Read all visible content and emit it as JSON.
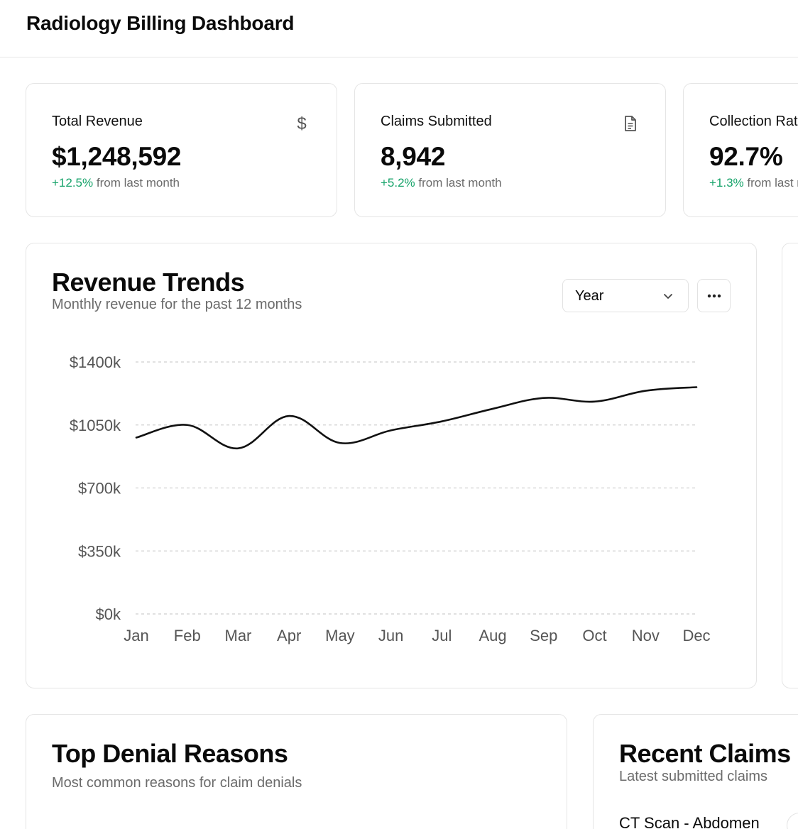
{
  "header": {
    "title": "Radiology Billing Dashboard"
  },
  "stats": [
    {
      "label": "Total Revenue",
      "icon": "dollar-icon",
      "value": "$1,248,592",
      "change": "+12.5%",
      "change_suffix": " from last month"
    },
    {
      "label": "Claims Submitted",
      "icon": "document-icon",
      "value": "8,942",
      "change": "+5.2%",
      "change_suffix": " from last month"
    },
    {
      "label": "Collection Rate",
      "value": "92.7%",
      "change": "+1.3%",
      "change_suffix": " from last month"
    }
  ],
  "revenue_trends": {
    "title": "Revenue Trends",
    "subtitle": "Monthly revenue for the past 12 months",
    "period_select": {
      "value": "Year"
    },
    "more_icon": "more-horizontal-icon"
  },
  "chart_data": {
    "type": "line",
    "categories": [
      "Jan",
      "Feb",
      "Mar",
      "Apr",
      "May",
      "Jun",
      "Jul",
      "Aug",
      "Sep",
      "Oct",
      "Nov",
      "Dec"
    ],
    "values": [
      980,
      1050,
      920,
      1100,
      950,
      1020,
      1070,
      1140,
      1200,
      1180,
      1240,
      1260
    ],
    "yticks": [
      "$0k",
      "$350k",
      "$700k",
      "$1050k",
      "$1400k"
    ],
    "ylim": [
      0,
      1400
    ],
    "grid": true,
    "line_color": "#111111"
  },
  "denials": {
    "title": "Top Denial Reasons",
    "subtitle": "Most common reasons for claim denials"
  },
  "recent_claims": {
    "title": "Recent Claims",
    "subtitle": "Latest submitted claims",
    "items": [
      {
        "name": "CT Scan - Abdomen"
      }
    ]
  }
}
